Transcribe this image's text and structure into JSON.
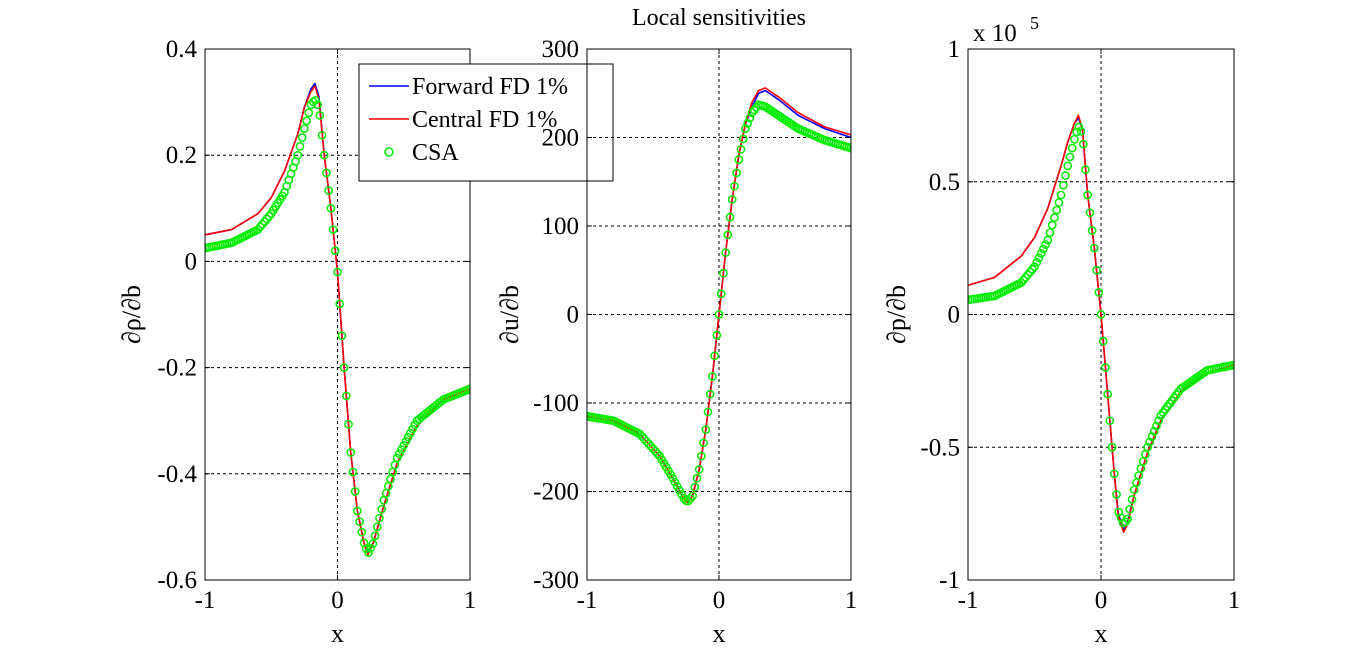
{
  "chart_data": [
    {
      "type": "line",
      "title": "",
      "xlabel": "x",
      "ylabel": "∂ρ/∂b",
      "xlim": [
        -1,
        1
      ],
      "ylim": [
        -0.6,
        0.4
      ],
      "xticks": [
        "-1",
        "0",
        "1"
      ],
      "yticks": [
        "-0.6",
        "-0.4",
        "-0.2",
        "0",
        "0.2",
        "0.4"
      ],
      "exponent_label": "",
      "grid": true,
      "legend": {
        "placement": "top-right",
        "entries": [
          "Forward FD 1%",
          "Central FD 1%",
          "CSA"
        ]
      },
      "series": [
        {
          "name": "Forward FD 1%",
          "color": "#0000ff",
          "style": "line",
          "x": [
            -1,
            -0.8,
            -0.6,
            -0.5,
            -0.4,
            -0.3,
            -0.25,
            -0.2,
            -0.17,
            -0.14,
            -0.1,
            -0.05,
            0,
            0.05,
            0.1,
            0.15,
            0.2,
            0.23,
            0.27,
            0.35,
            0.45,
            0.6,
            0.8,
            1
          ],
          "y": [
            0.05,
            0.06,
            0.09,
            0.12,
            0.17,
            0.24,
            0.29,
            0.325,
            0.335,
            0.31,
            0.2,
            0.1,
            -0.02,
            -0.2,
            -0.36,
            -0.47,
            -0.53,
            -0.55,
            -0.53,
            -0.46,
            -0.38,
            -0.31,
            -0.26,
            -0.24
          ]
        },
        {
          "name": "Central FD 1%",
          "color": "#ff0000",
          "style": "line",
          "x": [
            -1,
            -0.8,
            -0.6,
            -0.5,
            -0.4,
            -0.3,
            -0.25,
            -0.2,
            -0.17,
            -0.14,
            -0.1,
            -0.05,
            0,
            0.05,
            0.1,
            0.15,
            0.2,
            0.23,
            0.27,
            0.35,
            0.45,
            0.6,
            0.8,
            1
          ],
          "y": [
            0.05,
            0.06,
            0.09,
            0.12,
            0.17,
            0.24,
            0.29,
            0.32,
            0.33,
            0.305,
            0.2,
            0.1,
            -0.02,
            -0.2,
            -0.36,
            -0.47,
            -0.53,
            -0.552,
            -0.53,
            -0.46,
            -0.38,
            -0.31,
            -0.26,
            -0.24
          ]
        },
        {
          "name": "CSA",
          "color": "#00ee00",
          "style": "markers",
          "x": [
            -1,
            -0.8,
            -0.6,
            -0.5,
            -0.4,
            -0.3,
            -0.25,
            -0.2,
            -0.17,
            -0.14,
            -0.1,
            -0.05,
            0,
            0.05,
            0.1,
            0.15,
            0.2,
            0.23,
            0.27,
            0.35,
            0.45,
            0.6,
            0.8,
            1
          ],
          "y": [
            0.025,
            0.035,
            0.06,
            0.09,
            0.13,
            0.2,
            0.25,
            0.295,
            0.305,
            0.29,
            0.2,
            0.1,
            -0.02,
            -0.2,
            -0.36,
            -0.47,
            -0.53,
            -0.55,
            -0.53,
            -0.45,
            -0.37,
            -0.3,
            -0.26,
            -0.24
          ]
        }
      ]
    },
    {
      "type": "line",
      "title": "Local sensitivities",
      "xlabel": "x",
      "ylabel": "∂u/∂b",
      "xlim": [
        -1,
        1
      ],
      "ylim": [
        -300,
        300
      ],
      "xticks": [
        "-1",
        "0",
        "1"
      ],
      "yticks": [
        "-300",
        "-200",
        "-100",
        "0",
        "100",
        "200",
        "300"
      ],
      "exponent_label": "",
      "grid": true,
      "series": [
        {
          "name": "Forward FD 1%",
          "color": "#0000ff",
          "style": "line",
          "x": [
            -1,
            -0.8,
            -0.6,
            -0.45,
            -0.35,
            -0.27,
            -0.24,
            -0.2,
            -0.15,
            -0.1,
            -0.05,
            0,
            0.05,
            0.1,
            0.15,
            0.2,
            0.25,
            0.3,
            0.35,
            0.45,
            0.6,
            0.8,
            1
          ],
          "y": [
            -115,
            -120,
            -135,
            -160,
            -185,
            -207,
            -212,
            -205,
            -175,
            -130,
            -70,
            0,
            70,
            130,
            180,
            215,
            235,
            250,
            253,
            243,
            225,
            210,
            200
          ]
        },
        {
          "name": "Central FD 1%",
          "color": "#ff0000",
          "style": "line",
          "x": [
            -1,
            -0.8,
            -0.6,
            -0.45,
            -0.35,
            -0.27,
            -0.24,
            -0.2,
            -0.15,
            -0.1,
            -0.05,
            0,
            0.05,
            0.1,
            0.15,
            0.2,
            0.25,
            0.3,
            0.35,
            0.45,
            0.6,
            0.8,
            1
          ],
          "y": [
            -115,
            -120,
            -135,
            -160,
            -185,
            -207,
            -212,
            -205,
            -175,
            -130,
            -70,
            0,
            70,
            130,
            180,
            215,
            240,
            253,
            256,
            246,
            228,
            212,
            203
          ]
        },
        {
          "name": "CSA",
          "color": "#00ee00",
          "style": "markers",
          "x": [
            -1,
            -0.8,
            -0.6,
            -0.45,
            -0.35,
            -0.27,
            -0.24,
            -0.2,
            -0.15,
            -0.1,
            -0.05,
            0,
            0.05,
            0.1,
            0.15,
            0.2,
            0.25,
            0.3,
            0.35,
            0.45,
            0.6,
            0.8,
            1
          ],
          "y": [
            -115,
            -120,
            -135,
            -160,
            -185,
            -207,
            -212,
            -205,
            -175,
            -130,
            -70,
            0,
            70,
            130,
            175,
            210,
            228,
            237,
            235,
            225,
            210,
            197,
            188
          ]
        }
      ]
    },
    {
      "type": "line",
      "title": "",
      "xlabel": "x",
      "ylabel": "∂p/∂b",
      "xlim": [
        -1,
        1
      ],
      "ylim": [
        -1,
        1
      ],
      "xticks": [
        "-1",
        "0",
        "1"
      ],
      "yticks": [
        "-1",
        "-0.5",
        "0",
        "0.5",
        "1"
      ],
      "exponent_label": "x 10",
      "exponent_power": "5",
      "grid": true,
      "series": [
        {
          "name": "Forward FD 1%",
          "color": "#0000ff",
          "style": "line",
          "x": [
            -1,
            -0.8,
            -0.6,
            -0.5,
            -0.4,
            -0.3,
            -0.25,
            -0.2,
            -0.17,
            -0.14,
            -0.1,
            -0.05,
            0,
            0.05,
            0.1,
            0.13,
            0.17,
            0.2,
            0.25,
            0.35,
            0.45,
            0.6,
            0.8,
            1
          ],
          "y": [
            0.11,
            0.14,
            0.22,
            0.29,
            0.4,
            0.56,
            0.65,
            0.72,
            0.74,
            0.7,
            0.45,
            0.25,
            0.0,
            -0.3,
            -0.6,
            -0.75,
            -0.81,
            -0.78,
            -0.68,
            -0.52,
            -0.4,
            -0.29,
            -0.22,
            -0.19
          ]
        },
        {
          "name": "Central FD 1%",
          "color": "#ff0000",
          "style": "line",
          "x": [
            -1,
            -0.8,
            -0.6,
            -0.5,
            -0.4,
            -0.3,
            -0.25,
            -0.2,
            -0.17,
            -0.14,
            -0.1,
            -0.05,
            0,
            0.05,
            0.1,
            0.13,
            0.17,
            0.2,
            0.25,
            0.35,
            0.45,
            0.6,
            0.8,
            1
          ],
          "y": [
            0.11,
            0.14,
            0.22,
            0.29,
            0.4,
            0.56,
            0.65,
            0.72,
            0.75,
            0.7,
            0.45,
            0.25,
            0.0,
            -0.3,
            -0.6,
            -0.76,
            -0.82,
            -0.79,
            -0.68,
            -0.52,
            -0.4,
            -0.29,
            -0.22,
            -0.19
          ]
        },
        {
          "name": "CSA",
          "color": "#00ee00",
          "style": "markers",
          "x": [
            -1,
            -0.8,
            -0.6,
            -0.5,
            -0.4,
            -0.3,
            -0.25,
            -0.2,
            -0.17,
            -0.14,
            -0.1,
            -0.05,
            0,
            0.05,
            0.1,
            0.13,
            0.17,
            0.2,
            0.25,
            0.35,
            0.45,
            0.6,
            0.8,
            1
          ],
          "y": [
            0.055,
            0.07,
            0.12,
            0.18,
            0.28,
            0.45,
            0.56,
            0.66,
            0.71,
            0.68,
            0.45,
            0.25,
            0.0,
            -0.3,
            -0.6,
            -0.74,
            -0.79,
            -0.77,
            -0.66,
            -0.5,
            -0.38,
            -0.28,
            -0.21,
            -0.19
          ]
        }
      ]
    }
  ]
}
